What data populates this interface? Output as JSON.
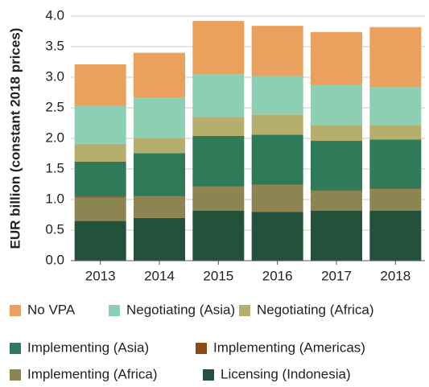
{
  "chart_data": {
    "type": "stacked_bar",
    "y_label": "EUR billion (constant 2018 prices)",
    "categories": [
      "2013",
      "2014",
      "2015",
      "2016",
      "2017",
      "2018"
    ],
    "series": [
      {
        "name": "No VPA",
        "color": "#e9a15d",
        "values": [
          0.67,
          0.73,
          0.87,
          0.82,
          0.87,
          0.98
        ]
      },
      {
        "name": "Negotiating (Asia)",
        "color": "#8dcfb2",
        "values": [
          0.63,
          0.66,
          0.7,
          0.63,
          0.65,
          0.62
        ]
      },
      {
        "name": "Negotiating (Africa)",
        "color": "#b6ae6c",
        "values": [
          0.29,
          0.25,
          0.31,
          0.33,
          0.26,
          0.24
        ]
      },
      {
        "name": "Implementing (Asia)",
        "color": "#2f7b59",
        "values": [
          0.57,
          0.7,
          0.82,
          0.81,
          0.81,
          0.8
        ]
      },
      {
        "name": "Implementing (Americas)",
        "color": "#8a4b17",
        "values": [
          0.02,
          0.01,
          0.01,
          0.01,
          0.01,
          0.01
        ]
      },
      {
        "name": "Implementing (Africa)",
        "color": "#8d8551",
        "values": [
          0.38,
          0.35,
          0.39,
          0.44,
          0.32,
          0.35
        ]
      },
      {
        "name": "Licensing (Indonesia)",
        "color": "#24513b",
        "values": [
          0.65,
          0.7,
          0.82,
          0.8,
          0.82,
          0.82
        ]
      }
    ],
    "ylim": [
      0,
      4
    ],
    "yticks": [
      {
        "value": 0,
        "label": "0.0"
      },
      0.5,
      {
        "value": 1,
        "label": "1.0"
      },
      1.5,
      {
        "value": 2,
        "label": "2.0"
      },
      2.5,
      {
        "value": 3,
        "label": "3.0"
      },
      3.5,
      {
        "value": 4,
        "label": "4.0"
      }
    ],
    "grid": true
  }
}
